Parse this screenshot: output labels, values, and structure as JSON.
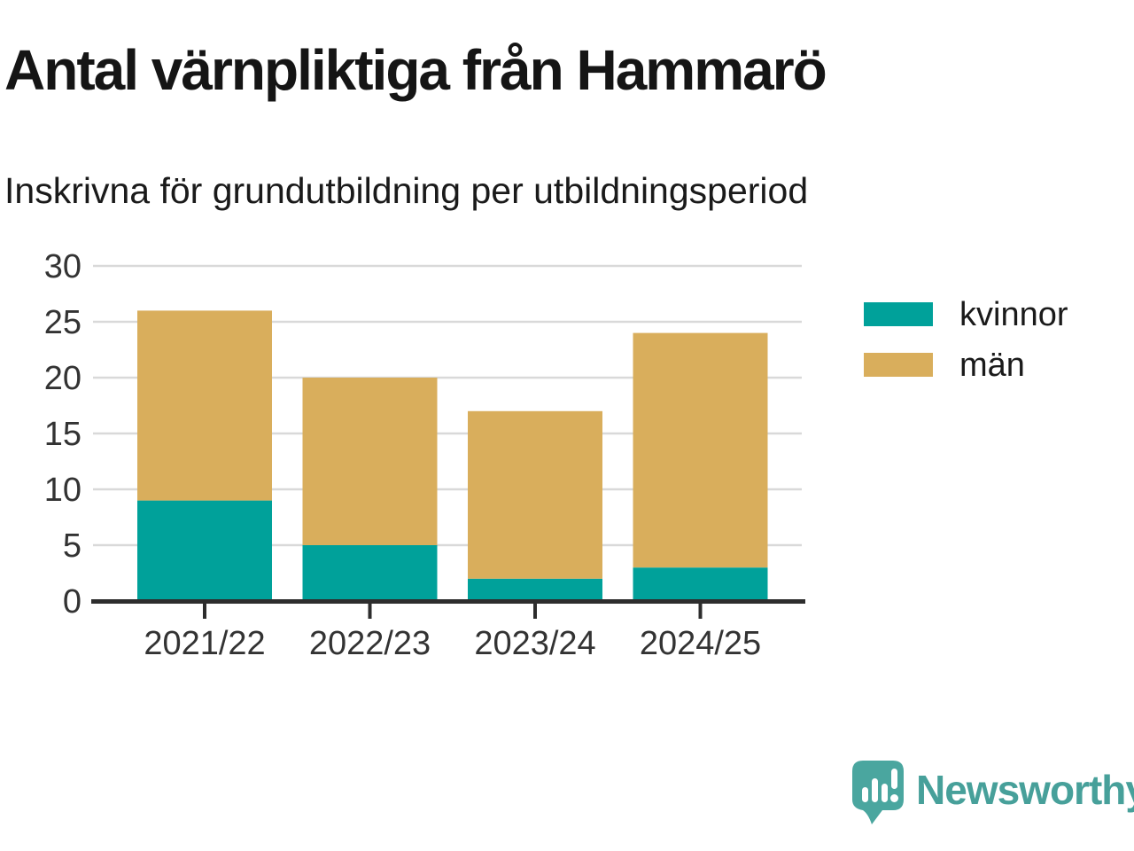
{
  "header": {
    "title": "Antal värnpliktiga från Hammarö",
    "subtitle": "Inskrivna för grundutbildning per utbildningsperiod"
  },
  "chart_data": {
    "type": "bar",
    "stacked": true,
    "title": "Antal värnpliktiga från Hammarö",
    "subtitle": "Inskrivna för grundutbildning per utbildningsperiod",
    "categories": [
      "2021/22",
      "2022/23",
      "2023/24",
      "2024/25"
    ],
    "series": [
      {
        "name": "kvinnor",
        "color": "#00a19a",
        "values": [
          9,
          5,
          2,
          3
        ]
      },
      {
        "name": "män",
        "color": "#d9ae5c",
        "values": [
          17,
          15,
          15,
          21
        ]
      }
    ],
    "totals": [
      26,
      20,
      17,
      24
    ],
    "xlabel": "",
    "ylabel": "",
    "ylim": [
      0,
      30
    ],
    "yticks": [
      0,
      5,
      10,
      15,
      20,
      25,
      30
    ],
    "grid": true,
    "gridline_color": "#d9d9d9",
    "axis_color": "#2d2d2d",
    "tick_text_color": "#333333",
    "legend_position": "right"
  },
  "legend": {
    "items": [
      {
        "label": "kvinnor",
        "color": "#00a19a"
      },
      {
        "label": "män",
        "color": "#d9ae5c"
      }
    ]
  },
  "footer": {
    "brand": "Newsworthy",
    "brand_color": "#47a09a",
    "logo_icon": "speech-bubble-bar-chart"
  }
}
